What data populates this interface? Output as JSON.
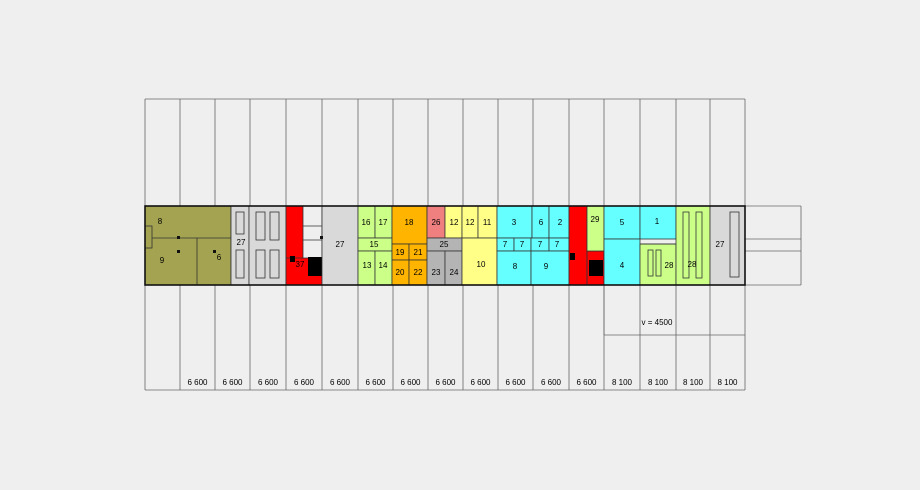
{
  "rooms": [
    {
      "id": "8",
      "color": "olive"
    },
    {
      "id": "9",
      "color": "olive"
    },
    {
      "id": "6",
      "color": "olive"
    },
    {
      "id": "27",
      "color": "gray"
    },
    {
      "id": "27",
      "color": "gray"
    },
    {
      "id": "27",
      "color": "gray"
    },
    {
      "id": "37",
      "color": "red"
    },
    {
      "id": "16",
      "color": "lime"
    },
    {
      "id": "17",
      "color": "lime"
    },
    {
      "id": "15",
      "color": "lime"
    },
    {
      "id": "13",
      "color": "lime"
    },
    {
      "id": "14",
      "color": "lime"
    },
    {
      "id": "18",
      "color": "orange"
    },
    {
      "id": "19",
      "color": "orange"
    },
    {
      "id": "21",
      "color": "orange"
    },
    {
      "id": "20",
      "color": "orange"
    },
    {
      "id": "22",
      "color": "orange"
    },
    {
      "id": "26",
      "color": "salmon"
    },
    {
      "id": "12",
      "color": "yellow"
    },
    {
      "id": "25",
      "color": "silver"
    },
    {
      "id": "23",
      "color": "silver"
    },
    {
      "id": "24",
      "color": "silver"
    },
    {
      "id": "12",
      "color": "yellow"
    },
    {
      "id": "11",
      "color": "yellow"
    },
    {
      "id": "10",
      "color": "yellow"
    },
    {
      "id": "3",
      "color": "cyan"
    },
    {
      "id": "6",
      "color": "cyan"
    },
    {
      "id": "2",
      "color": "cyan"
    },
    {
      "id": "7",
      "color": "cyan"
    },
    {
      "id": "7",
      "color": "cyan"
    },
    {
      "id": "7",
      "color": "cyan"
    },
    {
      "id": "7",
      "color": "cyan"
    },
    {
      "id": "8",
      "color": "cyan"
    },
    {
      "id": "9",
      "color": "cyan"
    },
    {
      "id": "29",
      "color": "lime"
    },
    {
      "id": "5",
      "color": "cyan"
    },
    {
      "id": "1",
      "color": "cyan"
    },
    {
      "id": "4",
      "color": "cyan"
    },
    {
      "id": "28",
      "color": "lime"
    },
    {
      "id": "28",
      "color": "lime"
    }
  ],
  "bay_spans": [
    "6 600",
    "6 600",
    "6 600",
    "6 600",
    "6 600",
    "6 600",
    "6 600",
    "6 600",
    "6 600",
    "6 600",
    "6 600",
    "6 600",
    "8 100",
    "8 100",
    "8 100",
    "8 100"
  ],
  "height_note": "v = 4500",
  "palette": {
    "olive": "#a3a352",
    "gray": "#d9d9d9",
    "red": "#ff0000",
    "lime": "#ccff88",
    "orange": "#ffb400",
    "salmon": "#f08080",
    "yellow": "#ffff88",
    "silver": "#b4b4b4",
    "cyan": "#66ffff",
    "background": "#efefef",
    "line": "#666666"
  }
}
